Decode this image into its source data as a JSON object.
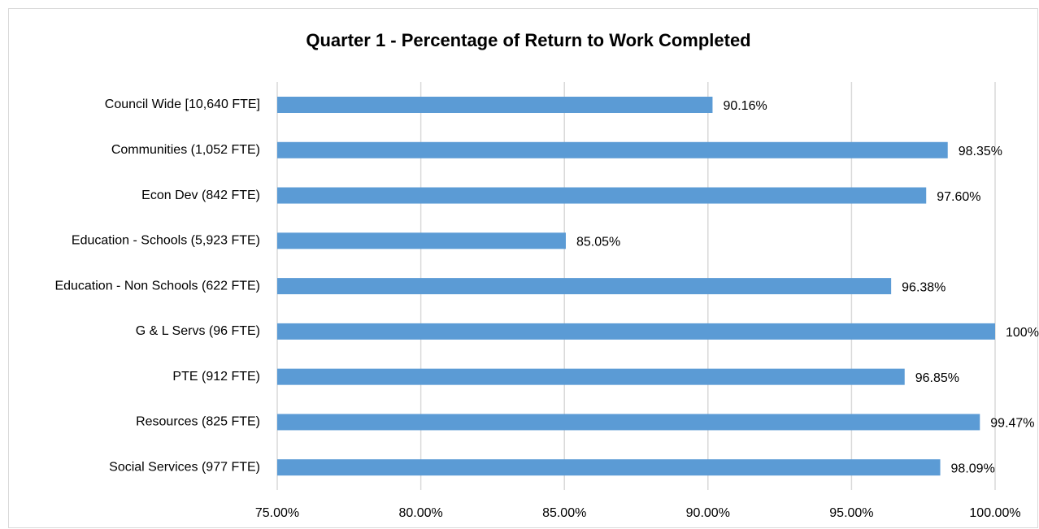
{
  "chart_data": {
    "type": "bar",
    "orientation": "horizontal",
    "title": "Quarter 1 - Percentage of Return to Work Completed",
    "categories": [
      "Council Wide [10,640 FTE]",
      "Communities (1,052 FTE)",
      "Econ Dev (842 FTE)",
      "Education - Schools (5,923 FTE)",
      "Education - Non Schools (622 FTE)",
      "G & L Servs (96 FTE)",
      "PTE (912 FTE)",
      "Resources (825 FTE)",
      "Social Services (977 FTE)"
    ],
    "values": [
      90.16,
      98.35,
      97.6,
      85.05,
      96.38,
      100,
      96.85,
      99.47,
      98.09
    ],
    "value_labels": [
      "90.16%",
      "98.35%",
      "97.60%",
      "85.05%",
      "96.38%",
      "100%",
      "96.85%",
      "99.47%",
      "98.09%"
    ],
    "color": "#5b9bd5",
    "xlim": [
      75,
      100
    ],
    "xticks": [
      {
        "value": 75,
        "label": "75.00%"
      },
      {
        "value": 80,
        "label": "80.00%"
      },
      {
        "value": 85,
        "label": "85.00%"
      },
      {
        "value": 90,
        "label": "90.00%"
      },
      {
        "value": 95,
        "label": "95.00%"
      },
      {
        "value": 100,
        "label": "100.00%"
      }
    ],
    "grid": true
  }
}
